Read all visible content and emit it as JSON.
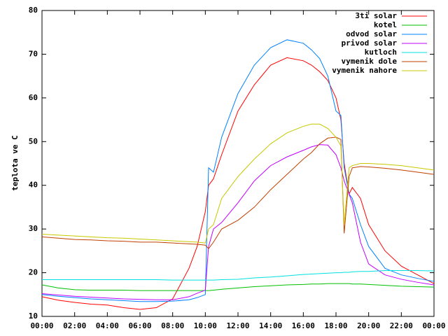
{
  "chart_data": {
    "type": "line",
    "ylabel": "teplota ve C",
    "x": [
      0,
      1,
      2,
      3,
      4,
      5,
      6,
      7,
      8,
      9,
      9.5,
      10,
      10.2,
      10.5,
      11,
      12,
      13,
      14,
      15,
      16,
      16.5,
      17,
      17.5,
      18,
      18.3,
      18.5,
      18.8,
      19,
      19.5,
      20,
      21,
      22,
      23,
      24
    ],
    "xlim": [
      0,
      24
    ],
    "xticks": [
      {
        "value": 0,
        "label": "00:00"
      },
      {
        "value": 2,
        "label": "02:00"
      },
      {
        "value": 4,
        "label": "04:00"
      },
      {
        "value": 6,
        "label": "06:00"
      },
      {
        "value": 8,
        "label": "08:00"
      },
      {
        "value": 10,
        "label": "10:00"
      },
      {
        "value": 12,
        "label": "12:00"
      },
      {
        "value": 14,
        "label": "14:00"
      },
      {
        "value": 16,
        "label": "16:00"
      },
      {
        "value": 18,
        "label": "18:00"
      },
      {
        "value": 20,
        "label": "20:00"
      },
      {
        "value": 22,
        "label": "22:00"
      },
      {
        "value": 24,
        "label": "00:00"
      }
    ],
    "ylim": [
      10,
      80
    ],
    "yticks": [
      10,
      20,
      30,
      40,
      50,
      60,
      70,
      80
    ],
    "grid": false,
    "legend": "top-right",
    "series": [
      {
        "name": "3ti solar",
        "color": "#ff0000",
        "values": [
          14.5,
          13.7,
          13.2,
          12.8,
          12.6,
          12,
          11.6,
          12,
          14,
          21,
          26,
          34,
          40,
          41.5,
          47,
          57,
          63,
          67.5,
          69.2,
          68.5,
          67.5,
          66,
          64,
          60,
          55,
          45,
          38,
          39.5,
          37,
          31,
          25,
          21.5,
          19.5,
          17.5
        ]
      },
      {
        "name": "kotel",
        "color": "#00c000",
        "values": [
          17.2,
          16.5,
          16.1,
          16,
          16,
          16,
          15.9,
          15.9,
          15.9,
          15.9,
          15.9,
          15.9,
          15.9,
          16,
          16.2,
          16.5,
          16.8,
          17,
          17.2,
          17.3,
          17.4,
          17.4,
          17.5,
          17.5,
          17.5,
          17.5,
          17.5,
          17.4,
          17.4,
          17.3,
          17.1,
          16.9,
          16.8,
          16.7
        ]
      },
      {
        "name": "odvod solar",
        "color": "#0080ff",
        "values": [
          15,
          14.6,
          14.3,
          14,
          13.8,
          13.6,
          13.4,
          13.4,
          13.5,
          13.8,
          14.3,
          15,
          44,
          43,
          51,
          61,
          67.5,
          71.5,
          73.3,
          72.5,
          71,
          69,
          65,
          57,
          56,
          44,
          38,
          37,
          31,
          26,
          21,
          19.5,
          18.7,
          18
        ]
      },
      {
        "name": "privod solar",
        "color": "#c000ff",
        "values": [
          15.2,
          14.9,
          14.6,
          14.4,
          14.2,
          14,
          13.9,
          13.8,
          13.8,
          14.5,
          15.3,
          16,
          26,
          30,
          31.5,
          36,
          41,
          44.5,
          46.5,
          48,
          48.8,
          49.3,
          49.2,
          47,
          44,
          41,
          38,
          36,
          27,
          22,
          19.5,
          18.5,
          17.8,
          17.2
        ]
      },
      {
        "name": "kutloch",
        "color": "#00e0e0",
        "values": [
          18.4,
          18.4,
          18.4,
          18.4,
          18.4,
          18.4,
          18.4,
          18.4,
          18.3,
          18.3,
          18.3,
          18.3,
          18.3,
          18.3,
          18.4,
          18.5,
          18.8,
          19,
          19.3,
          19.6,
          19.7,
          19.8,
          19.9,
          20,
          20,
          20.1,
          20.1,
          20.2,
          20.3,
          20.3,
          20.5,
          20.5,
          20.5,
          20.4
        ]
      },
      {
        "name": "vymenik dole",
        "color": "#c04000",
        "values": [
          28.2,
          27.9,
          27.6,
          27.5,
          27.3,
          27.2,
          27,
          27,
          26.8,
          26.6,
          26.5,
          26.3,
          25.5,
          27,
          30,
          32,
          35,
          39,
          42.5,
          46,
          47.5,
          49.5,
          50.8,
          51,
          50.5,
          29,
          42,
          44,
          44.3,
          44.2,
          43.9,
          43.5,
          43,
          42.5
        ]
      },
      {
        "name": "vymenik nahore",
        "color": "#c8c800",
        "values": [
          28.8,
          28.6,
          28.4,
          28.2,
          28,
          27.9,
          27.7,
          27.5,
          27.3,
          27.1,
          27,
          26.8,
          30,
          31,
          37,
          42,
          46,
          49.5,
          52,
          53.5,
          54,
          54,
          53,
          51,
          49,
          31,
          44,
          44.5,
          45,
          45,
          44.8,
          44.5,
          44,
          43.5
        ]
      }
    ]
  }
}
